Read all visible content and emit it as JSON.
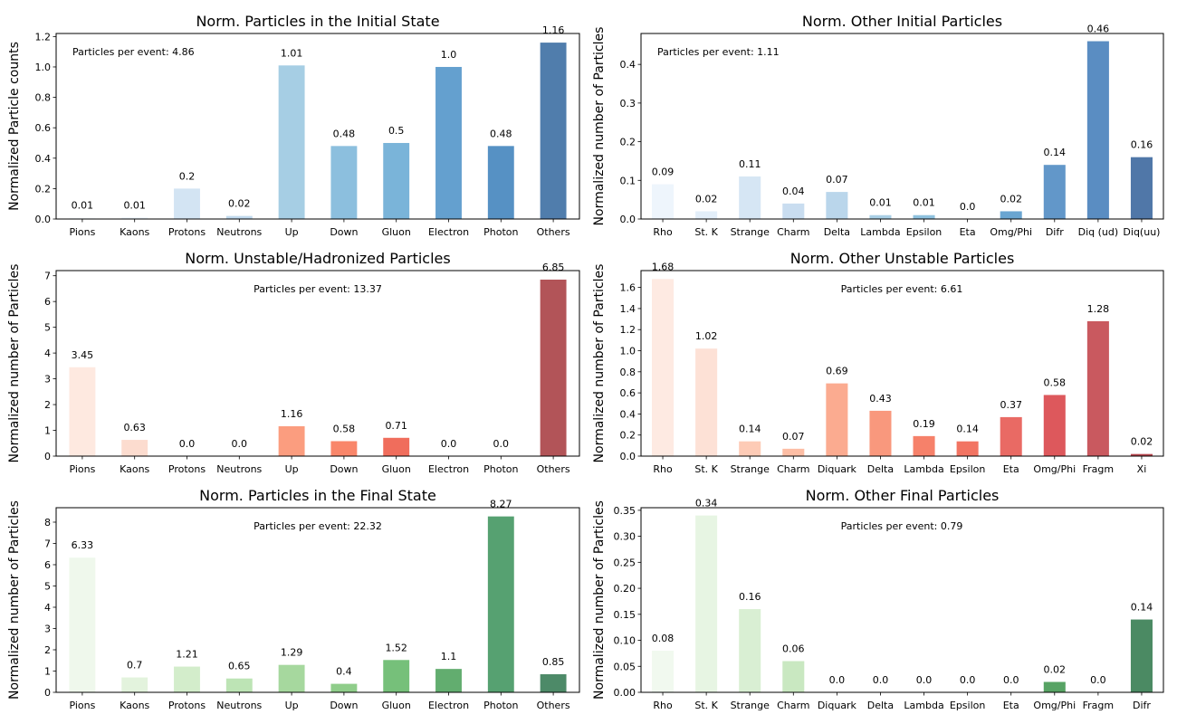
{
  "chart_data": [
    {
      "type": "bar",
      "title": "Norm. Particles in the Initial State",
      "ylabel": "Normalized Particle counts",
      "annotation": "Particles per event: 4.86",
      "categories": [
        "Pions",
        "Kaons",
        "Protons",
        "Neutrons",
        "Up",
        "Down",
        "Gluon",
        "Electron",
        "Photon",
        "Others"
      ],
      "values": [
        0.01,
        0.01,
        0.2,
        0.02,
        1.01,
        0.48,
        0.5,
        1.0,
        0.48,
        1.16
      ],
      "labels": [
        "0.01",
        "0.01",
        "0.2",
        "0.02",
        "1.01",
        "0.48",
        "0.5",
        "1.0",
        "0.48",
        "1.16"
      ],
      "colors": [
        "#f7fbff",
        "#edf4fb",
        "#d3e4f3",
        "#c1d9ee",
        "#a6cee4",
        "#8cbfde",
        "#7ab4d9",
        "#64a0cf",
        "#5691c4",
        "#507dac"
      ],
      "ylim": [
        0,
        1.22
      ],
      "yticks": [
        "0.0",
        "0.2",
        "0.4",
        "0.6",
        "0.8",
        "1.0",
        "1.2"
      ],
      "grid": false
    },
    {
      "type": "bar",
      "title": "Norm. Other Initial Particles",
      "ylabel": "Normalized number of Particles",
      "annotation": "Particles per event: 1.11",
      "categories": [
        "Rho",
        "St. K",
        "Strange",
        "Charm",
        "Delta",
        "Lambda",
        "Epsilon",
        "Eta",
        "Omg/Phi",
        "Difr",
        "Diq (ud)",
        "Diq(uu)"
      ],
      "values": [
        0.09,
        0.02,
        0.11,
        0.04,
        0.07,
        0.01,
        0.01,
        0.0,
        0.02,
        0.14,
        0.46,
        0.16
      ],
      "labels": [
        "0.09",
        "0.02",
        "0.11",
        "0.04",
        "0.07",
        "0.01",
        "0.01",
        "0.0",
        "0.02",
        "0.14",
        "0.46",
        "0.16"
      ],
      "colors": [
        "#eef5fc",
        "#e3eef9",
        "#d6e6f4",
        "#c9ddf0",
        "#bad6eb",
        "#a9cfe5",
        "#8ec1de",
        "#74b0d6",
        "#6aa5d1",
        "#6297c9",
        "#5a8dc2",
        "#5077a8"
      ],
      "ylim": [
        0,
        0.48
      ],
      "yticks": [
        "0.0",
        "0.1",
        "0.2",
        "0.3",
        "0.4"
      ],
      "grid": false
    },
    {
      "type": "bar",
      "title": "Norm. Unstable/Hadronized Particles",
      "ylabel": "Normalized number of Particles",
      "annotation": "Particles per event: 13.37",
      "categories": [
        "Pions",
        "Kaons",
        "Protons",
        "Neutrons",
        "Up",
        "Down",
        "Gluon",
        "Electron",
        "Photon",
        "Others"
      ],
      "values": [
        3.45,
        0.63,
        0.0,
        0.0,
        1.16,
        0.58,
        0.71,
        0.0,
        0.0,
        6.85
      ],
      "labels": [
        "3.45",
        "0.63",
        "0.0",
        "0.0",
        "1.16",
        "0.58",
        "0.71",
        "0.0",
        "0.0",
        "6.85"
      ],
      "colors": [
        "#fee9e0",
        "#fcdccf",
        "#fcc9b3",
        "#fcb59c",
        "#fb9d7f",
        "#f9866a",
        "#f06d5c",
        "#de4f4a",
        "#c94646",
        "#b25458"
      ],
      "ylim": [
        0,
        7.2
      ],
      "yticks": [
        "0",
        "1",
        "2",
        "3",
        "4",
        "5",
        "6",
        "7"
      ],
      "grid": false
    },
    {
      "type": "bar",
      "title": "Norm. Other Unstable Particles",
      "ylabel": "Normalized number of Particles",
      "annotation": "Particles per event: 6.61",
      "categories": [
        "Rho",
        "St. K",
        "Strange",
        "Charm",
        "Diquark",
        "Delta",
        "Lambda",
        "Epsilon",
        "Eta",
        "Omg/Phi",
        "Fragm",
        "Xi"
      ],
      "values": [
        1.68,
        1.02,
        0.14,
        0.07,
        0.69,
        0.43,
        0.19,
        0.14,
        0.37,
        0.58,
        1.28,
        0.02
      ],
      "labels": [
        "1.68",
        "1.02",
        "0.14",
        "0.07",
        "0.69",
        "0.43",
        "0.19",
        "0.14",
        "0.37",
        "0.58",
        "1.28",
        "0.02"
      ],
      "colors": [
        "#feeae2",
        "#fde1d6",
        "#fdcbb6",
        "#fdbea5",
        "#fbab90",
        "#f9987d",
        "#f6816a",
        "#f27462",
        "#e96a64",
        "#dd585c",
        "#c9595f",
        "#b6454d"
      ],
      "ylim": [
        0,
        1.76
      ],
      "yticks": [
        "0.0",
        "0.2",
        "0.4",
        "0.6",
        "0.8",
        "1.0",
        "1.2",
        "1.4",
        "1.6"
      ],
      "grid": false
    },
    {
      "type": "bar",
      "title": "Norm. Particles in the Final State",
      "ylabel": "Normalized number of Particles",
      "annotation": "Particles per event: 22.32",
      "categories": [
        "Pions",
        "Kaons",
        "Protons",
        "Neutrons",
        "Up",
        "Down",
        "Gluon",
        "Electron",
        "Photon",
        "Others"
      ],
      "values": [
        6.33,
        0.7,
        1.21,
        0.65,
        1.29,
        0.4,
        1.52,
        1.1,
        8.27,
        0.85
      ],
      "labels": [
        "6.33",
        "0.7",
        "1.21",
        "0.65",
        "1.29",
        "0.4",
        "1.52",
        "1.1",
        "8.27",
        "0.85"
      ],
      "colors": [
        "#eff8ec",
        "#e3f3dd",
        "#d3edcb",
        "#bde4b5",
        "#a6d89e",
        "#8fcd8a",
        "#76c07a",
        "#62ad6f",
        "#56a171",
        "#4d8a68"
      ],
      "ylim": [
        0,
        8.68
      ],
      "yticks": [
        "0",
        "1",
        "2",
        "3",
        "4",
        "5",
        "6",
        "7",
        "8"
      ],
      "grid": false
    },
    {
      "type": "bar",
      "title": "Norm. Other Final Particles",
      "ylabel": "Normalized number of Particles",
      "annotation": "Particles per event: 0.79",
      "categories": [
        "Rho",
        "St. K",
        "Strange",
        "Charm",
        "Diquark",
        "Delta",
        "Lambda",
        "Epsilon",
        "Eta",
        "Omg/Phi",
        "Fragm",
        "Difr"
      ],
      "values": [
        0.08,
        0.34,
        0.16,
        0.06,
        0.0,
        0.0,
        0.0,
        0.0,
        0.0,
        0.02,
        0.0,
        0.14
      ],
      "labels": [
        "0.08",
        "0.34",
        "0.16",
        "0.06",
        "0.0",
        "0.0",
        "0.0",
        "0.0",
        "0.0",
        "0.02",
        "0.0",
        "0.14"
      ],
      "colors": [
        "#f1f9ef",
        "#e7f5e3",
        "#d9efd3",
        "#c9e8c1",
        "#b5dfae",
        "#a2d69b",
        "#8ecd8a",
        "#79c27a",
        "#64b46c",
        "#57a364",
        "#4d9a5f",
        "#4b8a63"
      ],
      "ylim": [
        0,
        0.355
      ],
      "yticks": [
        "0.00",
        "0.05",
        "0.10",
        "0.15",
        "0.20",
        "0.25",
        "0.30",
        "0.35"
      ],
      "grid": false
    }
  ]
}
